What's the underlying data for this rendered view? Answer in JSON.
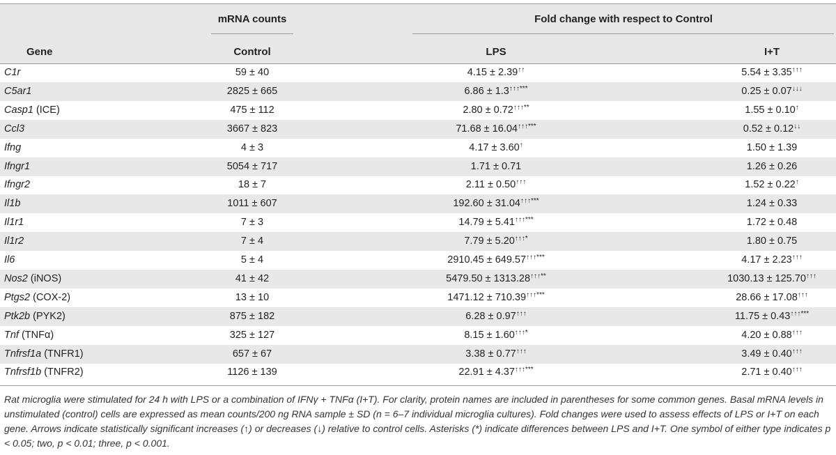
{
  "table": {
    "group_headers": {
      "mrna": "mRNA counts",
      "fold": "Fold change with respect to Control"
    },
    "column_headers": {
      "gene": "Gene",
      "control": "Control",
      "lps": "LPS",
      "it": "I+T"
    },
    "rows": [
      {
        "gene": "C1r",
        "extra": "",
        "control": "59 ± 40",
        "lps": "4.15 ± 2.39",
        "lps_sup": "↑↑",
        "it": "5.54 ± 3.35",
        "it_sup": "↑↑↑"
      },
      {
        "gene": "C5ar1",
        "extra": "",
        "control": "2825 ± 665",
        "lps": "6.86 ± 1.3",
        "lps_sup": "↑↑↑***",
        "it": "0.25 ± 0.07",
        "it_sup": "↓↓↓"
      },
      {
        "gene": "Casp1",
        "extra": " (ICE)",
        "control": "475 ± 112",
        "lps": "2.80 ± 0.72",
        "lps_sup": "↑↑↑**",
        "it": "1.55 ± 0.10",
        "it_sup": "↑"
      },
      {
        "gene": "Ccl3",
        "extra": "",
        "control": "3667 ± 823",
        "lps": "71.68 ± 16.04",
        "lps_sup": "↑↑↑***",
        "it": "0.52 ± 0.12",
        "it_sup": "↓↓"
      },
      {
        "gene": "Ifng",
        "extra": "",
        "control": "4 ± 3",
        "lps": "4.17 ± 3.60",
        "lps_sup": "↑",
        "it": "1.50 ± 1.39",
        "it_sup": ""
      },
      {
        "gene": "Ifngr1",
        "extra": "",
        "control": "5054 ± 717",
        "lps": "1.71 ± 0.71",
        "lps_sup": "",
        "it": "1.26 ± 0.26",
        "it_sup": ""
      },
      {
        "gene": "Ifngr2",
        "extra": "",
        "control": "18 ± 7",
        "lps": "2.11 ± 0.50",
        "lps_sup": "↑↑↑",
        "it": "1.52 ± 0.22",
        "it_sup": "↑"
      },
      {
        "gene": "Il1b",
        "extra": "",
        "control": "1011 ± 607",
        "lps": "192.60 ± 31.04",
        "lps_sup": "↑↑↑***",
        "it": "1.24 ± 0.33",
        "it_sup": ""
      },
      {
        "gene": "Il1r1",
        "extra": "",
        "control": "7 ± 3",
        "lps": "14.79 ± 5.41",
        "lps_sup": "↑↑↑***",
        "it": "1.72 ± 0.48",
        "it_sup": ""
      },
      {
        "gene": "Il1r2",
        "extra": "",
        "control": "7 ± 4",
        "lps": "7.79 ± 5.20",
        "lps_sup": "↑↑↑*",
        "it": "1.80 ± 0.75",
        "it_sup": ""
      },
      {
        "gene": "Il6",
        "extra": "",
        "control": "5 ± 4",
        "lps": "2910.45 ± 649.57",
        "lps_sup": "↑↑↑***",
        "it": "4.17 ± 2.23",
        "it_sup": "↑↑↑"
      },
      {
        "gene": "Nos2",
        "extra": " (iNOS)",
        "control": "41 ± 42",
        "lps": "5479.50 ± 1313.28",
        "lps_sup": "↑↑↑**",
        "it": "1030.13 ± 125.70",
        "it_sup": "↑↑↑"
      },
      {
        "gene": "Ptgs2",
        "extra": " (COX-2)",
        "control": "13 ± 10",
        "lps": "1471.12 ± 710.39",
        "lps_sup": "↑↑↑***",
        "it": "28.66 ± 17.08",
        "it_sup": "↑↑↑"
      },
      {
        "gene": "Ptk2b",
        "extra": " (PYK2)",
        "control": "875 ± 182",
        "lps": "6.28 ± 0.97",
        "lps_sup": "↑↑↑",
        "it": "11.75 ± 0.43",
        "it_sup": "↑↑↑***"
      },
      {
        "gene": "Tnf",
        "extra": " (TNFα)",
        "control": "325 ± 127",
        "lps": "8.15 ± 1.60",
        "lps_sup": "↑↑↑*",
        "it": "4.20 ± 0.88",
        "it_sup": "↑↑↑"
      },
      {
        "gene": "Tnfrsf1a",
        "extra": " (TNFR1)",
        "control": "657 ± 67",
        "lps": "3.38 ± 0.77",
        "lps_sup": "↑↑↑",
        "it": "3.49 ± 0.40",
        "it_sup": "↑↑↑"
      },
      {
        "gene": "Tnfrsf1b",
        "extra": " (TNFR2)",
        "control": "1126 ± 139",
        "lps": "22.91 ± 4.37",
        "lps_sup": "↑↑↑***",
        "it": "2.71 ± 0.40",
        "it_sup": "↑↑↑"
      }
    ]
  },
  "caption": "Rat microglia were stimulated for 24 h with LPS or a combination of IFNγ + TNFα (I+T). For clarity, protein names are included in parentheses for some common genes. Basal mRNA levels in unstimulated (control) cells are expressed as mean counts/200 ng RNA sample ± SD (n = 6–7 individual microglia cultures). Fold changes were used to assess effects of LPS or I+T on each gene. Arrows indicate statistically significant increases (↑) or decreases (↓) relative to control cells. Asterisks (*) indicate differences between LPS and I+T. One symbol of either type indicates p < 0.05; two, p < 0.01; three, p < 0.001.",
  "colors": {
    "row_band": "#e8e8e8",
    "rule": "#9a9a9a",
    "text": "#222222"
  }
}
